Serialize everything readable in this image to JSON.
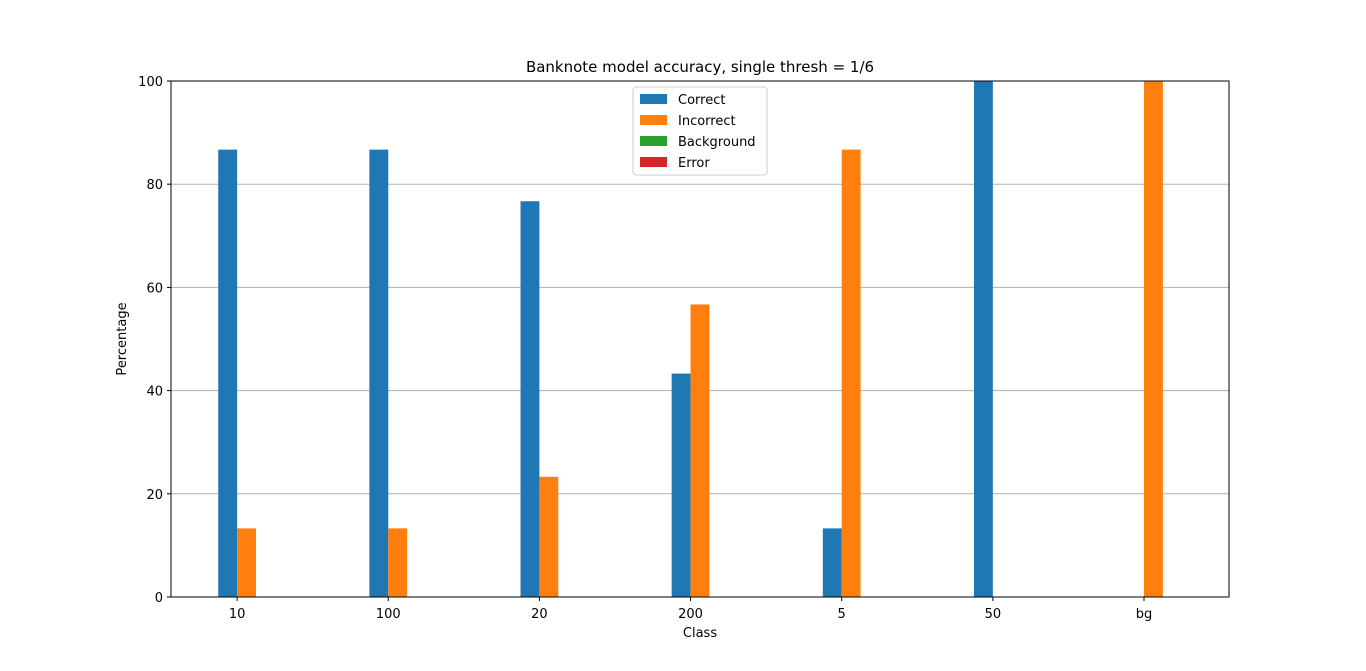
{
  "chart_data": {
    "type": "bar",
    "title": "Banknote model accuracy, single thresh = 1/6",
    "xlabel": "Class",
    "ylabel": "Percentage",
    "categories": [
      "10",
      "100",
      "20",
      "200",
      "5",
      "50",
      "bg"
    ],
    "ylim": [
      0,
      100
    ],
    "yticks": [
      0,
      20,
      40,
      60,
      80,
      100
    ],
    "grid": "y",
    "legend_position": "top-center",
    "series": [
      {
        "name": "Correct",
        "color": "#1f77b4",
        "values": [
          86.7,
          86.7,
          76.7,
          43.3,
          13.3,
          100,
          0
        ]
      },
      {
        "name": "Incorrect",
        "color": "#ff7f0e",
        "values": [
          13.3,
          13.3,
          23.3,
          56.7,
          86.7,
          0,
          100
        ]
      },
      {
        "name": "Background",
        "color": "#2ca02c",
        "values": [
          0,
          0,
          0,
          0,
          0,
          0,
          0
        ]
      },
      {
        "name": "Error",
        "color": "#d62728",
        "values": [
          0,
          0,
          0,
          0,
          0,
          0,
          0
        ]
      }
    ]
  }
}
